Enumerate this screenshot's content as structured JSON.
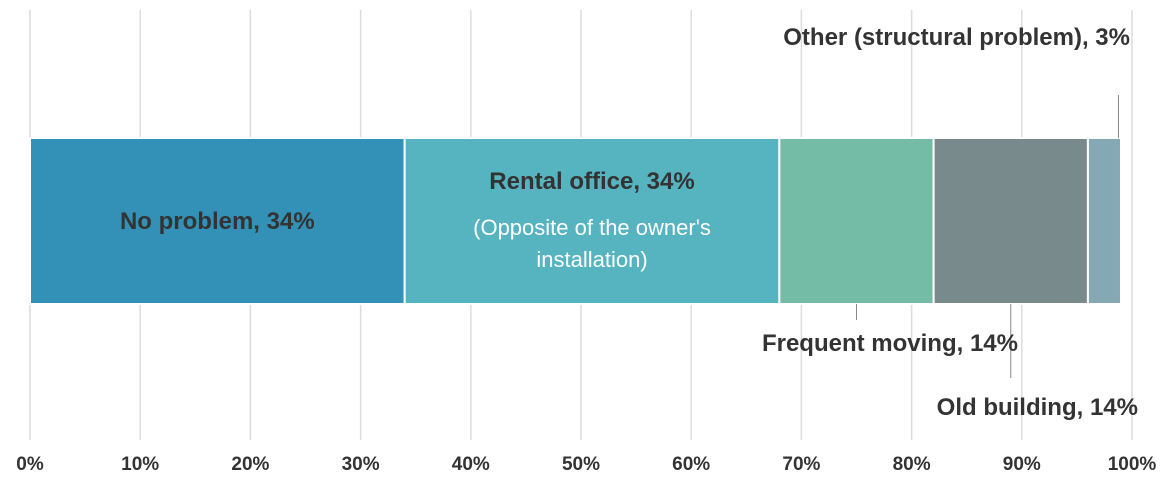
{
  "chart_data": {
    "type": "stacked-bar",
    "series": [
      {
        "color": "#3391b8",
        "values": [
          34
        ],
        "value_labels": [
          "No problem, 34%"
        ]
      },
      {
        "color": "#56b3c0",
        "values": [
          34
        ],
        "value_labels": [
          "Rental office, 34%"
        ]
      },
      {
        "color": "#74bca5",
        "values": [
          14
        ],
        "value_labels": [
          "Frequent moving, 14%"
        ]
      },
      {
        "color": "#788a8b",
        "values": [
          14
        ],
        "value_labels": [
          "Old building, 14%"
        ]
      },
      {
        "color": "#84a9b4",
        "values": [
          3
        ],
        "value_labels": [
          "Other (structural problem), 3%"
        ]
      }
    ],
    "annotations": [
      "(Opposite of the owner's installation)"
    ],
    "xlim": [
      0,
      100
    ],
    "xticks": [
      {
        "value": 0,
        "label": "0%"
      },
      {
        "value": 10,
        "label": "10%"
      },
      {
        "value": 20,
        "label": "20%"
      },
      {
        "value": 30,
        "label": "30%"
      },
      {
        "value": 40,
        "label": "40%"
      },
      {
        "value": 50,
        "label": "50%"
      },
      {
        "value": 60,
        "label": "60%"
      },
      {
        "value": 70,
        "label": "70%"
      },
      {
        "value": 80,
        "label": "80%"
      },
      {
        "value": 90,
        "label": "90%"
      },
      {
        "value": 100,
        "label": "100%"
      }
    ],
    "grid": true
  }
}
